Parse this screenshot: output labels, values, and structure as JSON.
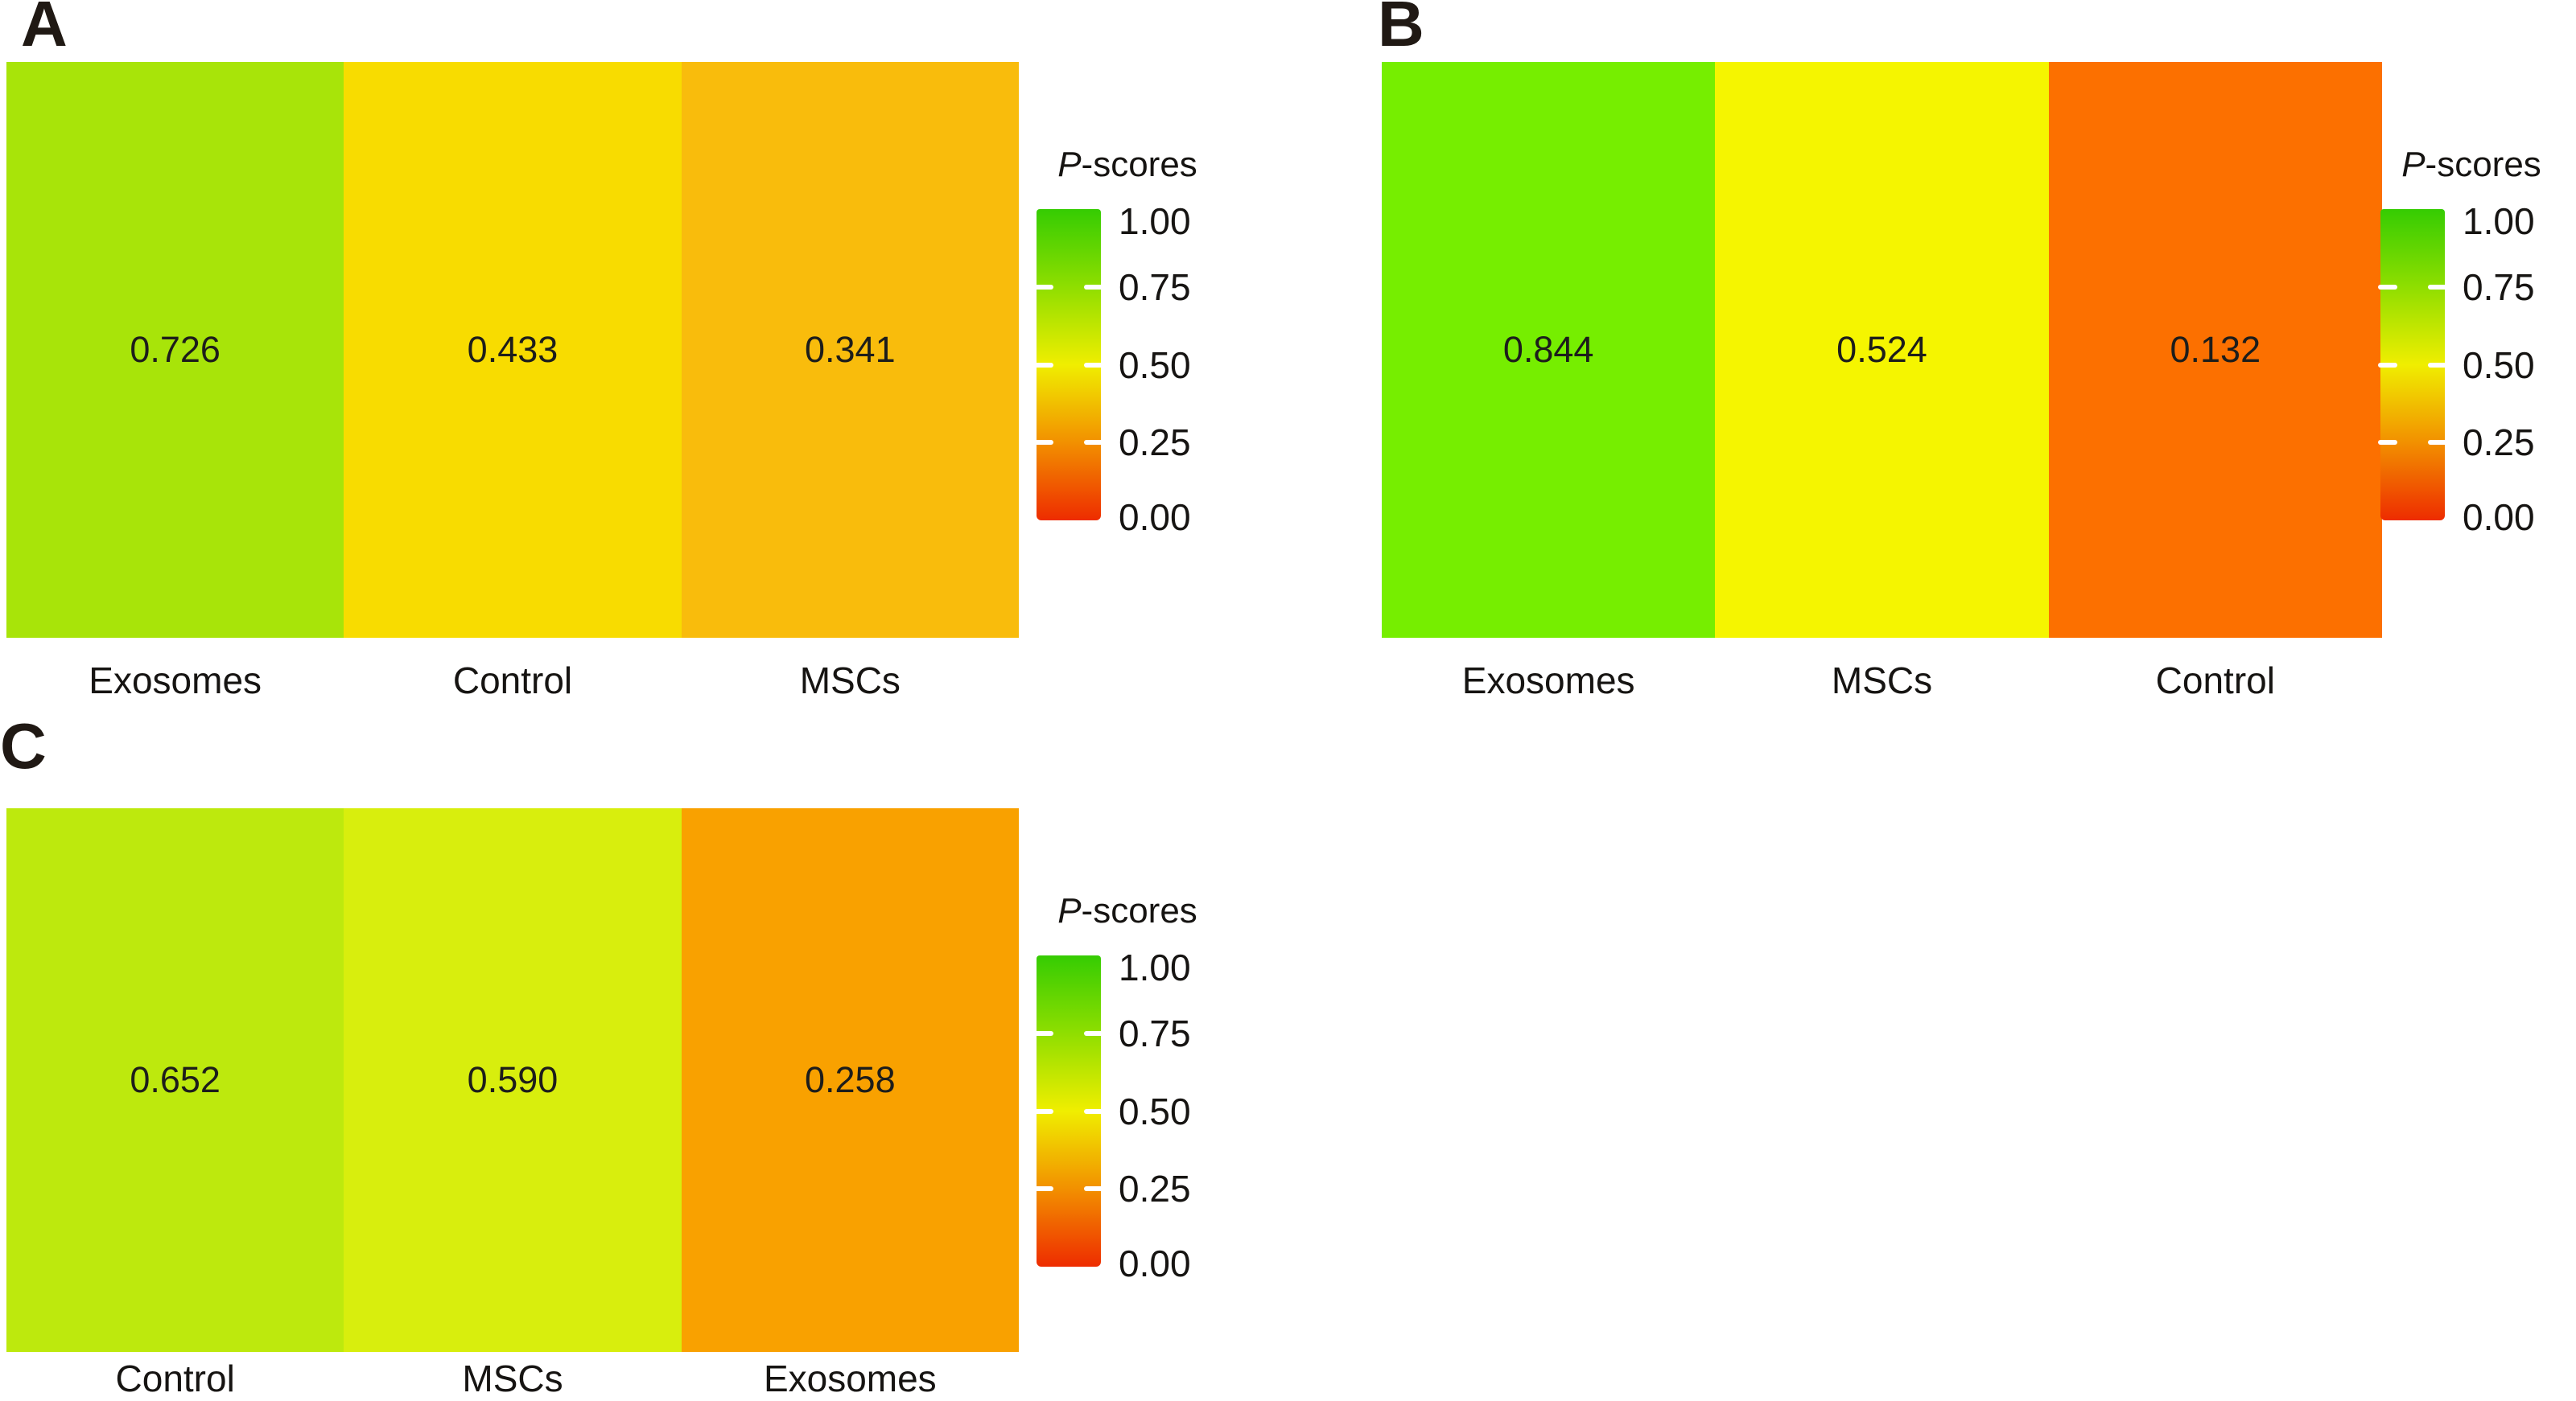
{
  "figure": {
    "panels": [
      {
        "label": "A",
        "cells": [
          {
            "category": "Exosomes",
            "value": "0.726",
            "color": "#A8E409"
          },
          {
            "category": "Control",
            "value": "0.433",
            "color": "#F8DC00"
          },
          {
            "category": "MSCs",
            "value": "0.341",
            "color": "#F9BC0C"
          }
        ]
      },
      {
        "label": "B",
        "cells": [
          {
            "category": "Exosomes",
            "value": "0.844",
            "color": "#76EE00"
          },
          {
            "category": "MSCs",
            "value": "0.524",
            "color": "#F5F500"
          },
          {
            "category": "Control",
            "value": "0.132",
            "color": "#FC7000"
          }
        ]
      },
      {
        "label": "C",
        "cells": [
          {
            "category": "Control",
            "value": "0.652",
            "color": "#BDE90D"
          },
          {
            "category": "MSCs",
            "value": "0.590",
            "color": "#D8EE0D"
          },
          {
            "category": "Exosomes",
            "value": "0.258",
            "color": "#F9A100"
          }
        ]
      }
    ],
    "legend": {
      "title_p": "P",
      "title_suffix": "-scores",
      "ticks": [
        "1.00",
        "0.75",
        "0.50",
        "0.25",
        "0.00"
      ],
      "gradient_stops": [
        "#35CC02",
        "#8FDE00",
        "#F0EE00",
        "#F29000",
        "#EE2C00"
      ]
    }
  },
  "chart_data": [
    {
      "type": "heatmap",
      "panel": "A",
      "categories": [
        "Exosomes",
        "Control",
        "MSCs"
      ],
      "values": [
        0.726,
        0.433,
        0.341
      ],
      "colorbar_label": "P-scores",
      "colorbar_range": [
        0.0,
        1.0
      ],
      "colorbar_ticks": [
        1.0,
        0.75,
        0.5,
        0.25,
        0.0
      ],
      "colorbar_colors_high_to_low": [
        "#35CC02",
        "#8FDE00",
        "#F0EE00",
        "#F29000",
        "#EE2C00"
      ],
      "legend_position": "right"
    },
    {
      "type": "heatmap",
      "panel": "B",
      "categories": [
        "Exosomes",
        "MSCs",
        "Control"
      ],
      "values": [
        0.844,
        0.524,
        0.132
      ],
      "colorbar_label": "P-scores",
      "colorbar_range": [
        0.0,
        1.0
      ],
      "colorbar_ticks": [
        1.0,
        0.75,
        0.5,
        0.25,
        0.0
      ],
      "colorbar_colors_high_to_low": [
        "#35CC02",
        "#8FDE00",
        "#F0EE00",
        "#F29000",
        "#EE2C00"
      ],
      "legend_position": "right"
    },
    {
      "type": "heatmap",
      "panel": "C",
      "categories": [
        "Control",
        "MSCs",
        "Exosomes"
      ],
      "values": [
        0.652,
        0.59,
        0.258
      ],
      "colorbar_label": "P-scores",
      "colorbar_range": [
        0.0,
        1.0
      ],
      "colorbar_ticks": [
        1.0,
        0.75,
        0.5,
        0.25,
        0.0
      ],
      "colorbar_colors_high_to_low": [
        "#35CC02",
        "#8FDE00",
        "#F0EE00",
        "#F29000",
        "#EE2C00"
      ],
      "legend_position": "right"
    }
  ]
}
